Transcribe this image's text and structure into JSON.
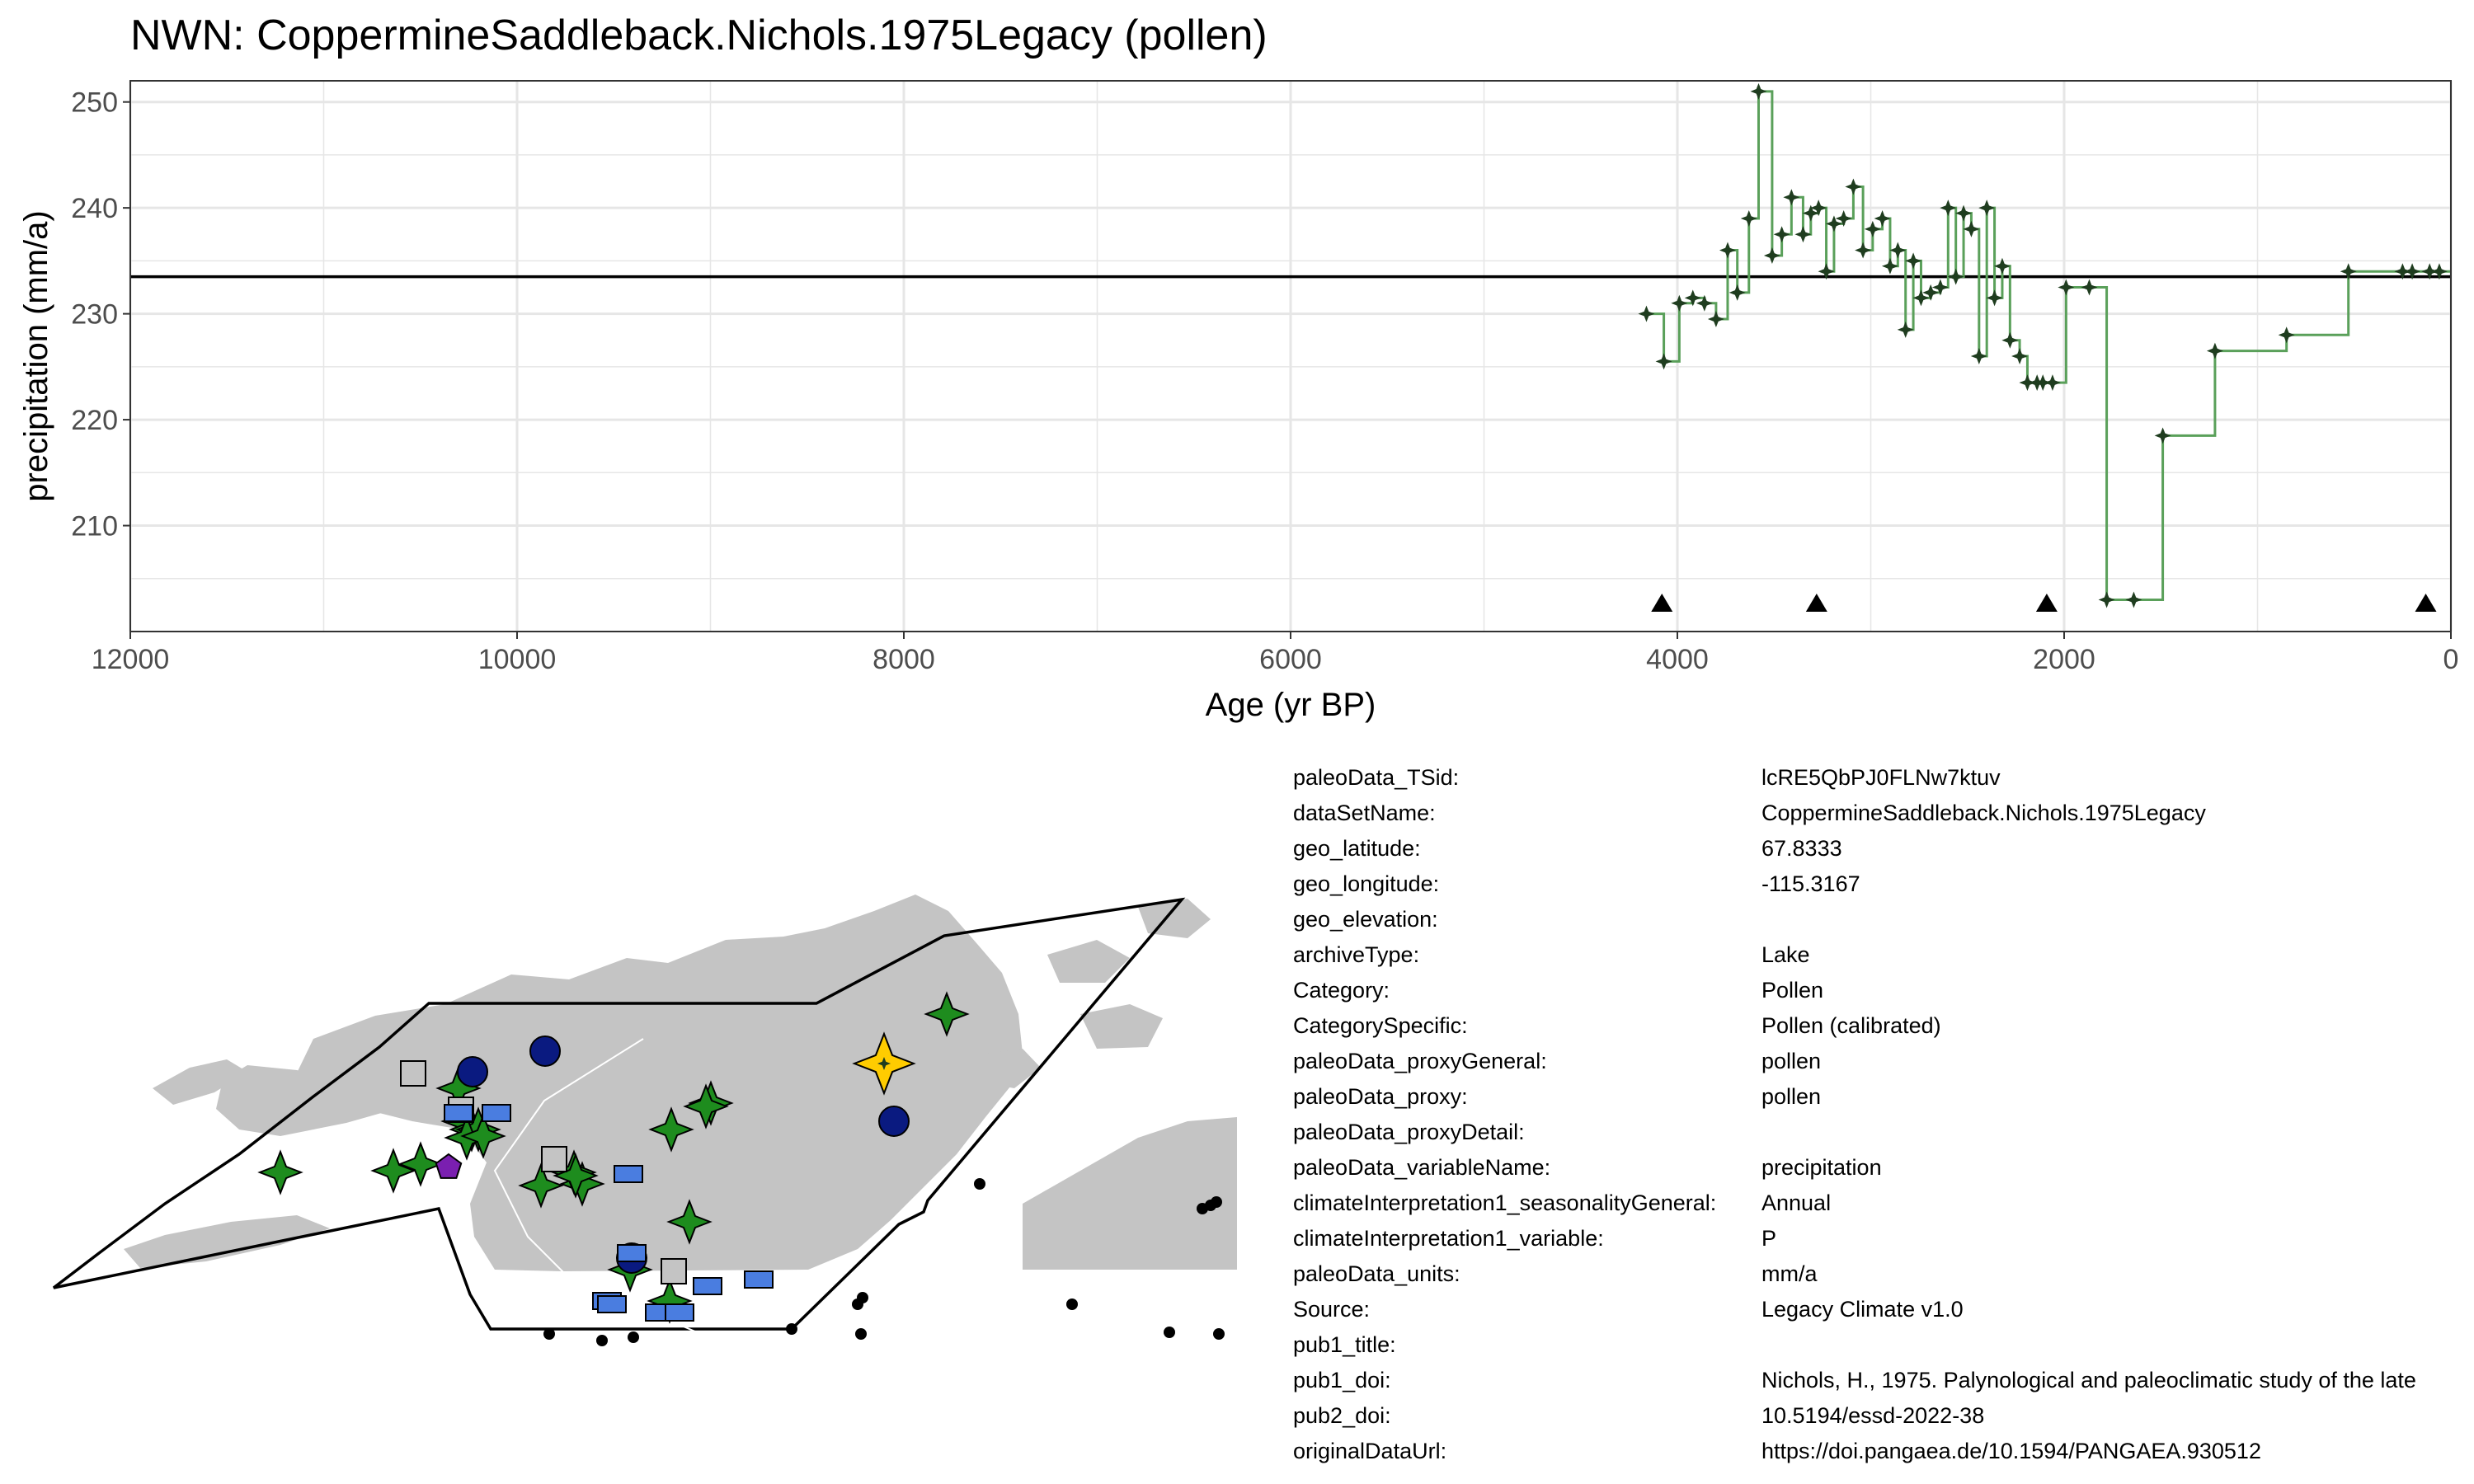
{
  "title": "NWN: CoppermineSaddleback.Nichols.1975Legacy (pollen)",
  "colors": {
    "series_line": "#5aa05a",
    "series_point": "#1f3d1f",
    "reference_line": "#000000",
    "grid": "#e6e6e6",
    "land": "#c4c4c4",
    "star_site": "#1e8c1e",
    "circle_site": "#0a1a80",
    "square_site": "#c4c4c4",
    "rect_site": "#4a7de0",
    "pentagon_site": "#7a1fb0",
    "highlight_site": "#ffcc00"
  },
  "chart_data": {
    "type": "line",
    "title": "NWN: CoppermineSaddleback.Nichols.1975Legacy (pollen)",
    "xlabel": "Age (yr BP)",
    "ylabel": "precipitation (mm/a)",
    "xlim": [
      12000,
      0
    ],
    "x_reversed": true,
    "ylim": [
      200,
      252
    ],
    "xticks": [
      12000,
      10000,
      8000,
      6000,
      4000,
      2000,
      0
    ],
    "yticks": [
      210,
      220,
      230,
      240,
      250
    ],
    "grid": true,
    "step": true,
    "reference_line_y": 233.5,
    "series": [
      {
        "values_x": [
          4160,
          4070,
          3990,
          3920,
          3860,
          3800,
          3740,
          3690,
          3630,
          3580,
          3510,
          3460,
          3410,
          3350,
          3310,
          3270,
          3230,
          3190,
          3140,
          3090,
          3040,
          2990,
          2940,
          2900,
          2860,
          2820,
          2780,
          2740,
          2690,
          2640,
          2600,
          2560,
          2520,
          2480,
          2440,
          2400,
          2360,
          2320,
          2280,
          2230,
          2190,
          2140,
          2110,
          2060,
          1990,
          1870,
          1780,
          1640,
          1490,
          1220,
          850,
          530,
          250,
          200,
          110,
          60,
          20
        ],
        "values_y": [
          230.0,
          225.5,
          231.0,
          231.5,
          231.0,
          229.5,
          236.0,
          232.0,
          239.0,
          251.0,
          235.5,
          237.5,
          241.0,
          237.5,
          239.5,
          240.0,
          234.0,
          238.5,
          239.0,
          242.0,
          236.0,
          238.0,
          239.0,
          234.5,
          236.0,
          228.5,
          235.0,
          231.5,
          232.0,
          232.5,
          240.0,
          233.5,
          239.5,
          238.0,
          226.0,
          240.0,
          231.5,
          234.5,
          227.5,
          226.0,
          223.5,
          223.5,
          223.5,
          223.5,
          232.5,
          232.5,
          203.0,
          203.0,
          218.5,
          226.5,
          228.0,
          234.0,
          234.0,
          234.0,
          234.0,
          234.0,
          234.0
        ]
      }
    ],
    "triangle_markers_x": [
      4080,
      3280,
      2090,
      130
    ]
  },
  "metadata": [
    {
      "key": "paleoData_TSid:",
      "value": "lcRE5QbPJ0FLNw7ktuv"
    },
    {
      "key": "dataSetName:",
      "value": "CoppermineSaddleback.Nichols.1975Legacy"
    },
    {
      "key": "geo_latitude:",
      "value": "67.8333"
    },
    {
      "key": "geo_longitude:",
      "value": "-115.3167"
    },
    {
      "key": "geo_elevation:",
      "value": ""
    },
    {
      "key": "archiveType:",
      "value": "Lake"
    },
    {
      "key": "Category:",
      "value": "Pollen"
    },
    {
      "key": "CategorySpecific:",
      "value": "Pollen (calibrated)"
    },
    {
      "key": "paleoData_proxyGeneral:",
      "value": "pollen"
    },
    {
      "key": "paleoData_proxy:",
      "value": "pollen"
    },
    {
      "key": "paleoData_proxyDetail:",
      "value": ""
    },
    {
      "key": "paleoData_variableName:",
      "value": "precipitation"
    },
    {
      "key": "climateInterpretation1_seasonalityGeneral:",
      "value": "Annual"
    },
    {
      "key": "climateInterpretation1_variable:",
      "value": "P"
    },
    {
      "key": "paleoData_units:",
      "value": "mm/a"
    },
    {
      "key": "Source:",
      "value": "Legacy Climate v1.0"
    },
    {
      "key": "pub1_title:",
      "value": ""
    },
    {
      "key": "pub1_doi:",
      "value": "Nichols, H., 1975. Palynological and paleoclimatic study of the late"
    },
    {
      "key": "pub2_doi:",
      "value": "10.5194/essd-2022-38"
    },
    {
      "key": "originalDataUrl:",
      "value": "https://doi.pangaea.de/10.1594/PANGAEA.930512"
    }
  ]
}
